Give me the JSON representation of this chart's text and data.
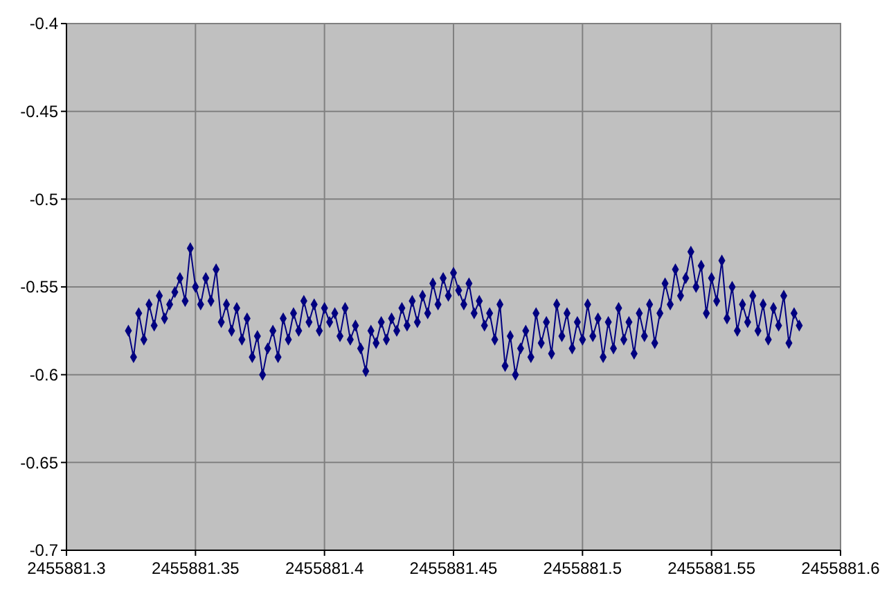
{
  "chart_data": {
    "type": "line",
    "marker": "diamond",
    "line_style": "solid",
    "grid": true,
    "x": [
      2455881.324,
      2455881.326,
      2455881.328,
      2455881.33,
      2455881.332,
      2455881.334,
      2455881.336,
      2455881.338,
      2455881.34,
      2455881.342,
      2455881.344,
      2455881.346,
      2455881.348,
      2455881.35,
      2455881.352,
      2455881.354,
      2455881.356,
      2455881.358,
      2455881.36,
      2455881.362,
      2455881.364,
      2455881.366,
      2455881.368,
      2455881.37,
      2455881.372,
      2455881.374,
      2455881.376,
      2455881.378,
      2455881.38,
      2455881.382,
      2455881.384,
      2455881.386,
      2455881.388,
      2455881.39,
      2455881.392,
      2455881.394,
      2455881.396,
      2455881.398,
      2455881.4,
      2455881.402,
      2455881.404,
      2455881.406,
      2455881.408,
      2455881.41,
      2455881.412,
      2455881.414,
      2455881.416,
      2455881.418,
      2455881.42,
      2455881.422,
      2455881.424,
      2455881.426,
      2455881.428,
      2455881.43,
      2455881.432,
      2455881.434,
      2455881.436,
      2455881.438,
      2455881.44,
      2455881.442,
      2455881.444,
      2455881.446,
      2455881.448,
      2455881.45,
      2455881.452,
      2455881.454,
      2455881.456,
      2455881.458,
      2455881.46,
      2455881.462,
      2455881.464,
      2455881.466,
      2455881.468,
      2455881.47,
      2455881.472,
      2455881.474,
      2455881.476,
      2455881.478,
      2455881.48,
      2455881.482,
      2455881.484,
      2455881.486,
      2455881.488,
      2455881.49,
      2455881.492,
      2455881.494,
      2455881.496,
      2455881.498,
      2455881.5,
      2455881.502,
      2455881.504,
      2455881.506,
      2455881.508,
      2455881.51,
      2455881.512,
      2455881.514,
      2455881.516,
      2455881.518,
      2455881.52,
      2455881.522,
      2455881.524,
      2455881.526,
      2455881.528,
      2455881.53,
      2455881.532,
      2455881.534,
      2455881.536,
      2455881.538,
      2455881.54,
      2455881.542,
      2455881.544,
      2455881.546,
      2455881.548,
      2455881.55,
      2455881.552,
      2455881.554,
      2455881.556,
      2455881.558,
      2455881.56,
      2455881.562,
      2455881.564,
      2455881.566,
      2455881.568,
      2455881.57,
      2455881.572,
      2455881.574,
      2455881.576,
      2455881.578,
      2455881.58,
      2455881.582,
      2455881.584
    ],
    "series": [
      {
        "color": "#000080",
        "values": [
          -0.575,
          -0.59,
          -0.565,
          -0.58,
          -0.56,
          -0.572,
          -0.555,
          -0.568,
          -0.56,
          -0.553,
          -0.545,
          -0.558,
          -0.528,
          -0.55,
          -0.56,
          -0.545,
          -0.558,
          -0.54,
          -0.57,
          -0.56,
          -0.575,
          -0.562,
          -0.58,
          -0.568,
          -0.59,
          -0.578,
          -0.6,
          -0.585,
          -0.575,
          -0.59,
          -0.568,
          -0.58,
          -0.565,
          -0.575,
          -0.558,
          -0.57,
          -0.56,
          -0.575,
          -0.562,
          -0.57,
          -0.565,
          -0.578,
          -0.562,
          -0.58,
          -0.572,
          -0.585,
          -0.598,
          -0.575,
          -0.582,
          -0.57,
          -0.58,
          -0.568,
          -0.575,
          -0.562,
          -0.572,
          -0.558,
          -0.57,
          -0.555,
          -0.565,
          -0.548,
          -0.56,
          -0.545,
          -0.555,
          -0.542,
          -0.552,
          -0.56,
          -0.548,
          -0.565,
          -0.558,
          -0.572,
          -0.565,
          -0.58,
          -0.56,
          -0.595,
          -0.578,
          -0.6,
          -0.585,
          -0.575,
          -0.59,
          -0.565,
          -0.582,
          -0.57,
          -0.588,
          -0.56,
          -0.578,
          -0.565,
          -0.585,
          -0.57,
          -0.58,
          -0.56,
          -0.578,
          -0.568,
          -0.59,
          -0.57,
          -0.585,
          -0.562,
          -0.58,
          -0.57,
          -0.588,
          -0.565,
          -0.578,
          -0.56,
          -0.582,
          -0.565,
          -0.548,
          -0.56,
          -0.54,
          -0.555,
          -0.545,
          -0.53,
          -0.55,
          -0.538,
          -0.565,
          -0.545,
          -0.558,
          -0.535,
          -0.568,
          -0.55,
          -0.575,
          -0.56,
          -0.57,
          -0.555,
          -0.575,
          -0.56,
          -0.58,
          -0.562,
          -0.572,
          -0.555,
          -0.582,
          -0.565,
          -0.572
        ]
      }
    ],
    "xlim": [
      2455881.3,
      2455881.6
    ],
    "xticks": [
      2455881.3,
      2455881.35,
      2455881.4,
      2455881.45,
      2455881.5,
      2455881.55,
      2455881.6
    ],
    "ylim": [
      -0.7,
      -0.4
    ],
    "yticks": [
      -0.7,
      -0.65,
      -0.6,
      -0.55,
      -0.5,
      -0.45,
      -0.4
    ]
  }
}
